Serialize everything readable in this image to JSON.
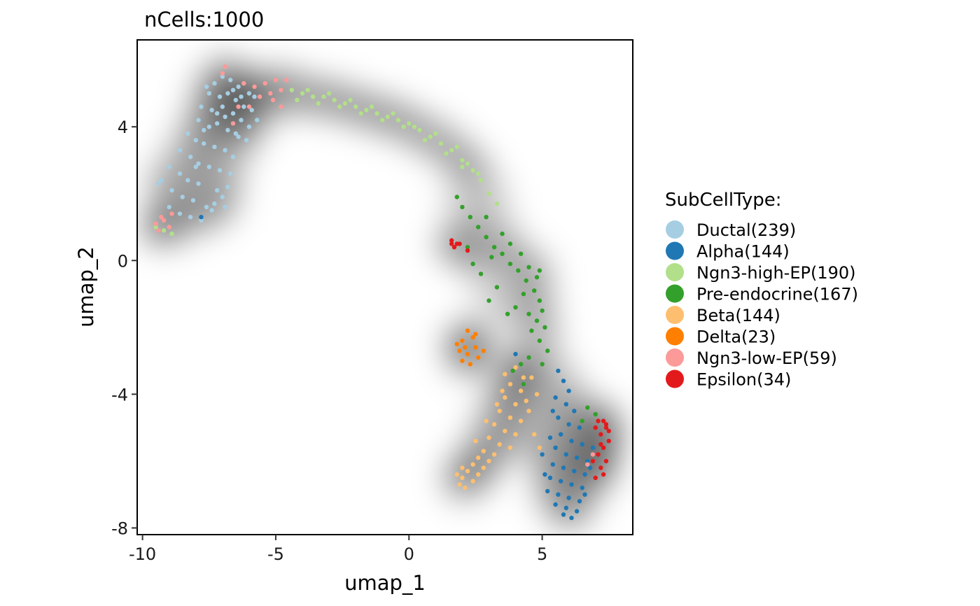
{
  "chart_data": {
    "type": "scatter",
    "title": "nCells:1000",
    "xlabel": "umap_1",
    "ylabel": "umap_2",
    "xlim": [
      -10.2,
      8.4
    ],
    "ylim": [
      -8.2,
      6.6
    ],
    "xticks": [
      -10,
      -5,
      0,
      5
    ],
    "xtick_labels": [
      "-10",
      "-5",
      "0",
      "5"
    ],
    "yticks": [
      -8,
      -4,
      0,
      4
    ],
    "ytick_labels": [
      "-8",
      "-4",
      "0",
      "4"
    ],
    "grid": false,
    "background": "density-shading",
    "legend": {
      "title": "SubCellType:",
      "placement": "right",
      "entries": [
        {
          "label": "Ductal(239)",
          "color": "#A6CEE3"
        },
        {
          "label": "Alpha(144)",
          "color": "#1F78B4"
        },
        {
          "label": "Ngn3-high-EP(190)",
          "color": "#B2DF8A"
        },
        {
          "label": "Pre-endocrine(167)",
          "color": "#33A02C"
        },
        {
          "label": "Beta(144)",
          "color": "#FDBF6F"
        },
        {
          "label": "Delta(23)",
          "color": "#FF7F00"
        },
        {
          "label": "Ngn3-low-EP(59)",
          "color": "#FB9A99"
        },
        {
          "label": "Epsilon(34)",
          "color": "#E31A1C"
        }
      ]
    },
    "series": [
      {
        "name": "Ductal(239)",
        "color": "#A6CEE3",
        "points": [
          [
            -7.3,
            5.3
          ],
          [
            -7.0,
            5.5
          ],
          [
            -6.7,
            5.4
          ],
          [
            -6.4,
            5.2
          ],
          [
            -6.0,
            5.0
          ],
          [
            -7.5,
            5.0
          ],
          [
            -7.1,
            4.9
          ],
          [
            -6.8,
            5.0
          ],
          [
            -6.5,
            4.8
          ],
          [
            -6.2,
            4.6
          ],
          [
            -5.9,
            4.5
          ],
          [
            -7.8,
            4.6
          ],
          [
            -7.4,
            4.5
          ],
          [
            -7.0,
            4.6
          ],
          [
            -6.6,
            4.4
          ],
          [
            -6.3,
            4.2
          ],
          [
            -6.0,
            4.0
          ],
          [
            -7.9,
            4.2
          ],
          [
            -7.5,
            4.0
          ],
          [
            -7.2,
            4.1
          ],
          [
            -6.8,
            3.9
          ],
          [
            -6.4,
            3.7
          ],
          [
            -6.1,
            3.6
          ],
          [
            -8.3,
            3.8
          ],
          [
            -8.0,
            3.6
          ],
          [
            -7.7,
            3.5
          ],
          [
            -7.3,
            3.4
          ],
          [
            -6.9,
            3.3
          ],
          [
            -6.6,
            3.1
          ],
          [
            -8.6,
            3.3
          ],
          [
            -8.2,
            3.1
          ],
          [
            -7.9,
            2.9
          ],
          [
            -7.5,
            2.8
          ],
          [
            -7.1,
            2.7
          ],
          [
            -6.7,
            2.6
          ],
          [
            -9.0,
            2.8
          ],
          [
            -8.6,
            2.6
          ],
          [
            -8.3,
            2.4
          ],
          [
            -7.9,
            2.3
          ],
          [
            -7.2,
            2.1
          ],
          [
            -6.8,
            2.2
          ],
          [
            -9.3,
            2.4
          ],
          [
            -8.9,
            2.1
          ],
          [
            -8.5,
            1.9
          ],
          [
            -8.1,
            1.8
          ],
          [
            -7.6,
            1.6
          ],
          [
            -7.3,
            1.7
          ],
          [
            -6.9,
            1.6
          ],
          [
            -9.0,
            1.6
          ],
          [
            -8.6,
            1.4
          ],
          [
            -8.2,
            1.3
          ],
          [
            -7.8,
            1.2
          ],
          [
            -7.4,
            1.5
          ],
          [
            -7.0,
            1.9
          ],
          [
            -9.4,
            2.3
          ],
          [
            -6.5,
            3.8
          ],
          [
            -6.9,
            4.3
          ],
          [
            -7.6,
            5.2
          ],
          [
            -6.2,
            5.3
          ],
          [
            -5.8,
            4.9
          ],
          [
            -5.7,
            4.2
          ],
          [
            -6.3,
            4.9
          ],
          [
            -7.2,
            4.4
          ],
          [
            -6.6,
            5.1
          ],
          [
            -7.7,
            3.9
          ],
          [
            -8.0,
            2.8
          ]
        ]
      },
      {
        "name": "Alpha(144)",
        "color": "#1F78B4",
        "points": [
          [
            5.6,
            -3.3
          ],
          [
            5.8,
            -3.6
          ],
          [
            6.0,
            -3.9
          ],
          [
            5.5,
            -4.1
          ],
          [
            5.9,
            -4.3
          ],
          [
            6.2,
            -4.5
          ],
          [
            5.6,
            -4.7
          ],
          [
            6.0,
            -4.9
          ],
          [
            6.4,
            -5.0
          ],
          [
            5.7,
            -5.2
          ],
          [
            6.1,
            -5.4
          ],
          [
            6.5,
            -5.5
          ],
          [
            5.5,
            -5.6
          ],
          [
            5.9,
            -5.8
          ],
          [
            6.3,
            -5.9
          ],
          [
            6.7,
            -6.0
          ],
          [
            5.4,
            -6.1
          ],
          [
            5.8,
            -6.2
          ],
          [
            6.2,
            -6.3
          ],
          [
            6.6,
            -6.4
          ],
          [
            5.3,
            -6.5
          ],
          [
            5.7,
            -6.6
          ],
          [
            6.1,
            -6.7
          ],
          [
            6.5,
            -6.8
          ],
          [
            5.2,
            -6.9
          ],
          [
            5.6,
            -7.0
          ],
          [
            6.0,
            -7.1
          ],
          [
            6.4,
            -7.2
          ],
          [
            5.5,
            -7.3
          ],
          [
            5.9,
            -7.4
          ],
          [
            6.3,
            -7.5
          ],
          [
            5.8,
            -7.6
          ],
          [
            6.1,
            -7.7
          ],
          [
            6.8,
            -6.2
          ],
          [
            6.9,
            -5.6
          ],
          [
            5.3,
            -5.3
          ],
          [
            5.0,
            -5.8
          ],
          [
            5.1,
            -6.4
          ],
          [
            6.6,
            -7.0
          ],
          [
            5.4,
            -4.5
          ],
          [
            4.0,
            -2.8
          ],
          [
            -7.8,
            1.3
          ]
        ]
      },
      {
        "name": "Ngn3-high-EP(190)",
        "color": "#B2DF8A",
        "points": [
          [
            -4.4,
            5.1
          ],
          [
            -4.0,
            5.0
          ],
          [
            -3.6,
            4.9
          ],
          [
            -3.2,
            4.9
          ],
          [
            -2.8,
            4.8
          ],
          [
            -2.4,
            4.7
          ],
          [
            -2.0,
            4.6
          ],
          [
            -1.6,
            4.5
          ],
          [
            -1.2,
            4.4
          ],
          [
            -0.8,
            4.3
          ],
          [
            -0.4,
            4.2
          ],
          [
            0.0,
            4.1
          ],
          [
            0.4,
            3.9
          ],
          [
            0.8,
            3.7
          ],
          [
            1.2,
            3.5
          ],
          [
            1.6,
            3.3
          ],
          [
            2.0,
            3.0
          ],
          [
            2.4,
            2.7
          ],
          [
            2.7,
            2.4
          ],
          [
            3.0,
            2.0
          ],
          [
            3.3,
            1.7
          ],
          [
            -3.8,
            5.1
          ],
          [
            -3.0,
            5.0
          ],
          [
            -2.2,
            4.8
          ],
          [
            -1.4,
            4.6
          ],
          [
            -0.6,
            4.4
          ],
          [
            0.2,
            4.0
          ],
          [
            1.0,
            3.8
          ],
          [
            1.8,
            3.4
          ],
          [
            2.2,
            2.9
          ],
          [
            2.6,
            2.6
          ],
          [
            -4.2,
            4.8
          ],
          [
            -3.4,
            4.7
          ],
          [
            -2.6,
            4.6
          ],
          [
            -1.8,
            4.4
          ],
          [
            -1.0,
            4.2
          ],
          [
            -0.2,
            4.0
          ],
          [
            0.6,
            3.6
          ],
          [
            1.4,
            3.2
          ],
          [
            2.0,
            2.8
          ],
          [
            -9.5,
            1.0
          ],
          [
            -9.2,
            0.9
          ],
          [
            -8.9,
            0.8
          ]
        ]
      },
      {
        "name": "Pre-endocrine(167)",
        "color": "#33A02C",
        "points": [
          [
            1.8,
            1.9
          ],
          [
            2.0,
            1.6
          ],
          [
            2.3,
            1.3
          ],
          [
            2.6,
            1.0
          ],
          [
            2.9,
            0.7
          ],
          [
            3.2,
            0.4
          ],
          [
            3.5,
            0.2
          ],
          [
            3.8,
            -0.1
          ],
          [
            4.1,
            -0.3
          ],
          [
            4.4,
            -0.6
          ],
          [
            4.7,
            -0.9
          ],
          [
            4.9,
            -1.2
          ],
          [
            5.0,
            -1.5
          ],
          [
            4.8,
            -1.8
          ],
          [
            4.6,
            -2.1
          ],
          [
            4.9,
            -2.4
          ],
          [
            5.2,
            -2.7
          ],
          [
            4.5,
            -2.9
          ],
          [
            4.2,
            -3.1
          ],
          [
            3.9,
            -3.3
          ],
          [
            3.5,
            0.8
          ],
          [
            3.8,
            0.5
          ],
          [
            4.2,
            0.2
          ],
          [
            4.5,
            -0.2
          ],
          [
            4.8,
            -0.5
          ],
          [
            4.3,
            -1.0
          ],
          [
            4.0,
            -1.4
          ],
          [
            3.7,
            -1.6
          ],
          [
            4.5,
            -1.6
          ],
          [
            5.1,
            -2.0
          ],
          [
            3.0,
            -1.2
          ],
          [
            3.3,
            -0.8
          ],
          [
            2.7,
            -0.4
          ],
          [
            2.4,
            -0.1
          ],
          [
            4.6,
            -3.5
          ],
          [
            4.3,
            -3.7
          ],
          [
            6.7,
            -4.4
          ],
          [
            7.0,
            -4.6
          ],
          [
            6.5,
            -4.8
          ],
          [
            2.9,
            1.3
          ],
          [
            2.2,
            0.4
          ],
          [
            3.1,
            0.1
          ],
          [
            4.9,
            -0.3
          ],
          [
            5.0,
            -3.1
          ]
        ]
      },
      {
        "name": "Beta(144)",
        "color": "#FDBF6F",
        "points": [
          [
            4.0,
            -3.2
          ],
          [
            4.3,
            -3.5
          ],
          [
            3.8,
            -3.7
          ],
          [
            4.2,
            -3.9
          ],
          [
            3.6,
            -4.1
          ],
          [
            4.0,
            -4.3
          ],
          [
            4.4,
            -4.2
          ],
          [
            3.4,
            -4.5
          ],
          [
            3.8,
            -4.7
          ],
          [
            4.2,
            -4.8
          ],
          [
            3.2,
            -4.9
          ],
          [
            3.6,
            -5.1
          ],
          [
            4.0,
            -5.2
          ],
          [
            3.0,
            -5.3
          ],
          [
            3.4,
            -5.5
          ],
          [
            3.8,
            -5.6
          ],
          [
            2.8,
            -5.7
          ],
          [
            3.2,
            -5.8
          ],
          [
            2.6,
            -5.9
          ],
          [
            3.0,
            -6.0
          ],
          [
            2.4,
            -6.1
          ],
          [
            2.8,
            -6.2
          ],
          [
            2.2,
            -6.3
          ],
          [
            2.6,
            -6.4
          ],
          [
            2.0,
            -6.5
          ],
          [
            2.4,
            -6.6
          ],
          [
            1.8,
            -6.4
          ],
          [
            2.0,
            -6.2
          ],
          [
            1.9,
            -6.7
          ],
          [
            2.1,
            -6.8
          ],
          [
            4.6,
            -3.5
          ],
          [
            4.8,
            -4.0
          ],
          [
            4.5,
            -4.5
          ],
          [
            4.7,
            -5.2
          ],
          [
            4.9,
            -5.6
          ],
          [
            3.5,
            -3.9
          ],
          [
            3.3,
            -4.3
          ],
          [
            2.9,
            -4.8
          ],
          [
            2.5,
            -5.4
          ],
          [
            3.6,
            -3.4
          ]
        ]
      },
      {
        "name": "Delta(23)",
        "color": "#FF7F00",
        "points": [
          [
            2.2,
            -2.1
          ],
          [
            2.4,
            -2.3
          ],
          [
            2.0,
            -2.4
          ],
          [
            2.5,
            -2.6
          ],
          [
            1.9,
            -2.7
          ],
          [
            2.2,
            -2.8
          ],
          [
            2.6,
            -2.9
          ],
          [
            2.0,
            -3.0
          ],
          [
            2.3,
            -3.1
          ],
          [
            2.8,
            -2.7
          ],
          [
            1.8,
            -2.5
          ],
          [
            2.1,
            -2.6
          ],
          [
            2.5,
            -2.2
          ]
        ]
      },
      {
        "name": "Ngn3-low-EP(59)",
        "color": "#FB9A99",
        "points": [
          [
            -6.2,
            5.3
          ],
          [
            -5.8,
            5.2
          ],
          [
            -5.4,
            5.3
          ],
          [
            -5.0,
            5.4
          ],
          [
            -4.6,
            5.4
          ],
          [
            -5.2,
            5.0
          ],
          [
            -5.6,
            4.9
          ],
          [
            -4.8,
            5.1
          ],
          [
            -6.4,
            4.6
          ],
          [
            -6.6,
            4.1
          ],
          [
            -6.0,
            4.6
          ],
          [
            -7.0,
            5.6
          ],
          [
            -6.9,
            5.8
          ],
          [
            -9.5,
            1.1
          ],
          [
            -9.3,
            1.3
          ],
          [
            -9.0,
            1.0
          ],
          [
            -9.4,
            0.9
          ],
          [
            -9.2,
            1.2
          ],
          [
            -8.9,
            1.4
          ],
          [
            -4.8,
            4.6
          ],
          [
            -5.1,
            4.8
          ],
          [
            6.9,
            -5.8
          ],
          [
            6.7,
            -6.1
          ]
        ]
      },
      {
        "name": "Epsilon(34)",
        "color": "#E31A1C",
        "points": [
          [
            1.6,
            0.6
          ],
          [
            1.8,
            0.5
          ],
          [
            1.7,
            0.4
          ],
          [
            1.9,
            0.5
          ],
          [
            2.2,
            0.3
          ],
          [
            1.6,
            0.5
          ],
          [
            7.3,
            -4.8
          ],
          [
            7.4,
            -5.0
          ],
          [
            7.2,
            -5.2
          ],
          [
            7.5,
            -5.4
          ],
          [
            7.3,
            -5.6
          ],
          [
            7.1,
            -5.8
          ],
          [
            7.4,
            -6.0
          ],
          [
            7.2,
            -6.2
          ],
          [
            7.0,
            -5.0
          ],
          [
            7.3,
            -6.4
          ],
          [
            7.5,
            -5.1
          ],
          [
            6.9,
            -6.0
          ],
          [
            7.2,
            -5.5
          ],
          [
            7.4,
            -4.9
          ],
          [
            7.0,
            -6.5
          ],
          [
            7.1,
            -4.8
          ]
        ]
      }
    ]
  }
}
